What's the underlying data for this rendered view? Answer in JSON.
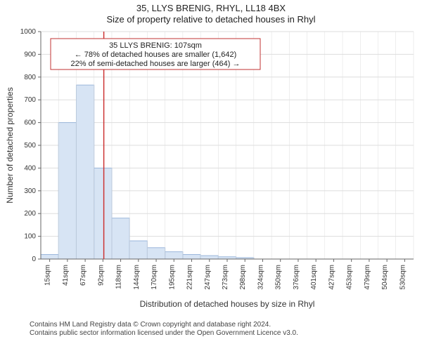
{
  "titles": {
    "line1": "35, LLYS BRENIG, RHYL, LL18 4BX",
    "line2": "Size of property relative to detached houses in Rhyl"
  },
  "chart": {
    "type": "histogram",
    "categories": [
      "15sqm",
      "41sqm",
      "67sqm",
      "92sqm",
      "118sqm",
      "144sqm",
      "170sqm",
      "195sqm",
      "221sqm",
      "247sqm",
      "273sqm",
      "298sqm",
      "324sqm",
      "350sqm",
      "376sqm",
      "401sqm",
      "427sqm",
      "453sqm",
      "479sqm",
      "504sqm",
      "530sqm"
    ],
    "values": [
      20,
      600,
      765,
      400,
      180,
      80,
      50,
      32,
      20,
      15,
      10,
      6,
      0,
      0,
      0,
      0,
      0,
      0,
      0,
      0,
      0
    ],
    "bar_fill": "#d7e4f4",
    "bar_stroke": "#9cb7db",
    "bar_stroke_width": 1,
    "ylabel": "Number of detached properties",
    "xlabel": "Distribution of detached houses by size in Rhyl",
    "ylim": [
      0,
      1000
    ],
    "ytick_step": 100,
    "grid_color": "#dddddd",
    "axis_color": "#666666",
    "tick_font_size": 10,
    "background": "#ffffff",
    "reference_line": {
      "after_category_index": 3,
      "color": "#cc3333",
      "width": 1.5
    },
    "annotation": {
      "border_color": "#cc3333",
      "bg": "#ffffff",
      "lines": [
        "35 LLYS BRENIG: 107sqm",
        "← 78% of detached houses are smaller (1,642)",
        "22% of semi-detached houses are larger (464) →"
      ],
      "font_size": 11
    }
  },
  "footer": {
    "line1": "Contains HM Land Registry data © Crown copyright and database right 2024.",
    "line2": "Contains public sector information licensed under the Open Government Licence v3.0."
  }
}
